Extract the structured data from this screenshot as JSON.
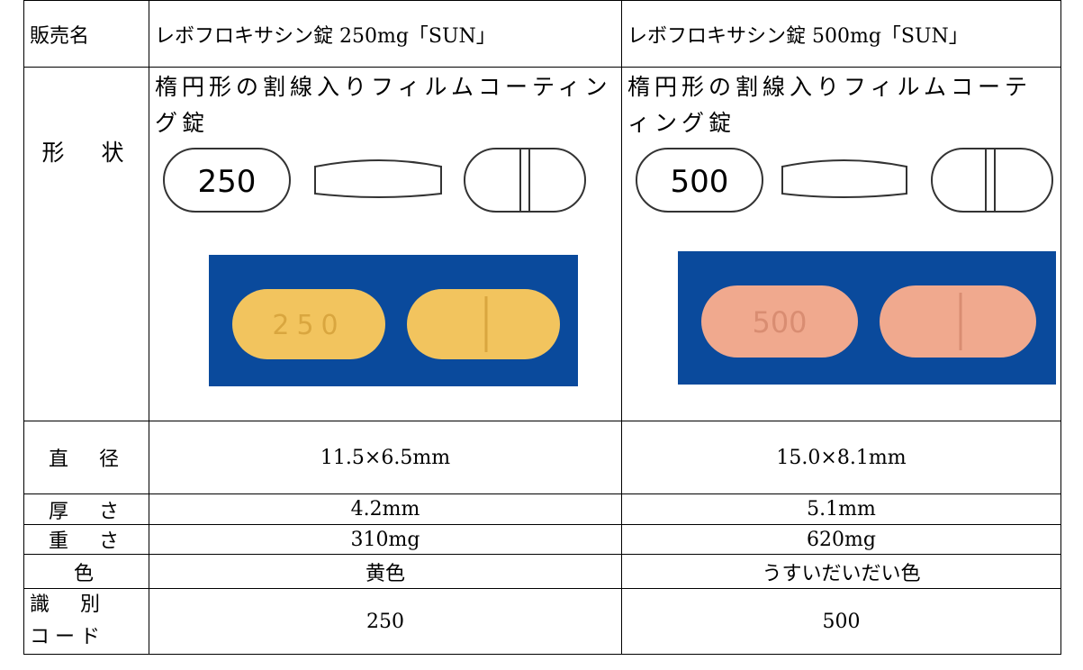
{
  "table": {
    "header": [
      "販売名",
      "レボフロキサシン錠 250mg「SUN」",
      "レボフロキサシン錠 500mg「SUN」"
    ],
    "shape_row": {
      "label": "形　状",
      "cells": [
        {
          "description": "楕円形の割線入りフィルムコーティング錠",
          "imprint": "250"
        },
        {
          "description": "楕円形の割線入りフィルムコーティング錠",
          "imprint": "500"
        }
      ]
    },
    "rows": [
      [
        "直　径",
        "11.5×6.5mm",
        "15.0×8.1mm"
      ],
      [
        "厚　さ",
        "4.2mm",
        "5.1mm"
      ],
      [
        "重　さ",
        "310mg",
        "620mg"
      ],
      [
        "色",
        "黄色",
        "うすいだいだい色"
      ],
      [
        "識　別\nコード",
        "250",
        "500"
      ]
    ]
  }
}
